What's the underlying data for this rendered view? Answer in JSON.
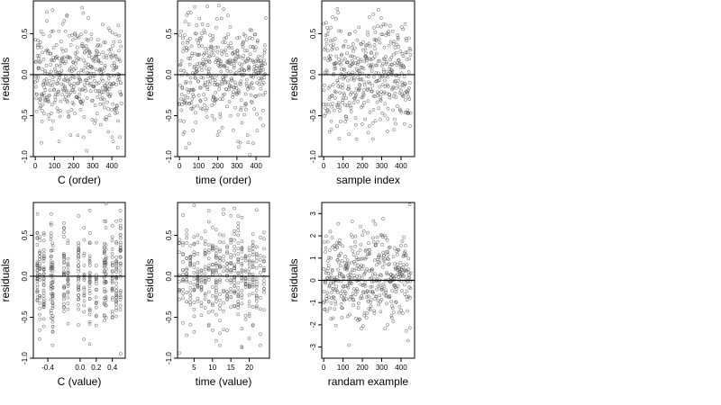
{
  "chart_data": [
    {
      "type": "scatter",
      "id": "c-order",
      "xlabel": "C (order)",
      "ylabel": "residuals",
      "xlim": [
        -10,
        470
      ],
      "ylim": [
        -1.0,
        0.9
      ],
      "xticks": [
        0,
        100,
        200,
        300,
        400
      ],
      "xtick_labels": [
        "0",
        "100",
        "200",
        "300",
        "400"
      ],
      "yticks": [
        -1.0,
        -0.5,
        0.0,
        0.5
      ],
      "ytick_labels": [
        "-1.0",
        "-0.5",
        "0.0",
        "0.5"
      ],
      "hline": 0,
      "points": [],
      "point_spec": {
        "n": 450,
        "x_range": [
          0,
          450
        ],
        "sd": 0.33,
        "seed": 11
      }
    },
    {
      "type": "scatter",
      "id": "time-order",
      "xlabel": "time (order)",
      "ylabel": "residuals",
      "xlim": [
        -10,
        470
      ],
      "ylim": [
        -1.0,
        0.9
      ],
      "xticks": [
        0,
        100,
        200,
        300,
        400
      ],
      "xtick_labels": [
        "0",
        "100",
        "200",
        "300",
        "400"
      ],
      "yticks": [
        -1.0,
        -0.5,
        0.0,
        0.5
      ],
      "ytick_labels": [
        "-1.0",
        "-0.5",
        "0.0",
        "0.5"
      ],
      "hline": 0,
      "points": [],
      "point_spec": {
        "n": 450,
        "x_range": [
          0,
          450
        ],
        "sd": 0.33,
        "seed": 23
      }
    },
    {
      "type": "scatter",
      "id": "sample-index",
      "xlabel": "sample index",
      "ylabel": "residuals",
      "xlim": [
        -10,
        470
      ],
      "ylim": [
        -1.0,
        0.9
      ],
      "xticks": [
        0,
        100,
        200,
        300,
        400
      ],
      "xtick_labels": [
        "0",
        "100",
        "200",
        "300",
        "400"
      ],
      "yticks": [
        -1.0,
        -0.5,
        0.0,
        0.5
      ],
      "ytick_labels": [
        "-1.0",
        "-0.5",
        "0.0",
        "0.5"
      ],
      "hline": 0,
      "points": [],
      "point_spec": {
        "n": 450,
        "x_range": [
          0,
          450
        ],
        "sd": 0.33,
        "seed": 37
      }
    },
    {
      "type": "scatter",
      "id": "c-value",
      "xlabel": "C (value)",
      "ylabel": "residuals",
      "xlim": [
        -0.58,
        0.56
      ],
      "ylim": [
        -1.0,
        0.9
      ],
      "xticks": [
        -0.4,
        0.0,
        0.2,
        0.4
      ],
      "xtick_labels": [
        "-0.4",
        "0.0",
        "0.2",
        "0.4"
      ],
      "yticks": [
        -1.0,
        -0.5,
        0.0,
        0.5
      ],
      "ytick_labels": [
        "-1.0",
        "-0.5",
        "0.0",
        "0.5"
      ],
      "hline": 0,
      "points": [],
      "point_spec": {
        "n": 450,
        "x_range": [
          -0.55,
          0.53
        ],
        "sd": 0.33,
        "seed": 41,
        "discrete": [
          -0.53,
          -0.5,
          -0.45,
          -0.36,
          -0.34,
          -0.2,
          -0.15,
          -0.02,
          0.05,
          0.12,
          0.2,
          0.3,
          0.32,
          0.4,
          0.45,
          0.5
        ]
      }
    },
    {
      "type": "scatter",
      "id": "time-value",
      "xlabel": "time (value)",
      "ylabel": "residuals",
      "xlim": [
        0.5,
        25.5
      ],
      "ylim": [
        -1.0,
        0.9
      ],
      "xticks": [
        5,
        10,
        15,
        20
      ],
      "xtick_labels": [
        "5",
        "10",
        "15",
        "20"
      ],
      "yticks": [
        -1.0,
        -0.5,
        0.0,
        0.5
      ],
      "ytick_labels": [
        "-1.0",
        "-0.5",
        "0.0",
        "0.5"
      ],
      "hline": 0,
      "points": [],
      "point_spec": {
        "n": 450,
        "x_range": [
          1,
          24
        ],
        "sd": 0.33,
        "seed": 53,
        "discrete": [
          1,
          2,
          3,
          4,
          5,
          6,
          7,
          8,
          9,
          10,
          11,
          12,
          13,
          14,
          15,
          16,
          17,
          18,
          19,
          20,
          21,
          22,
          23,
          24
        ]
      }
    },
    {
      "type": "scatter",
      "id": "random-example",
      "xlabel": "randam example",
      "ylabel": "residuals",
      "xlim": [
        -10,
        470
      ],
      "ylim": [
        -3.5,
        3.5
      ],
      "xticks": [
        0,
        100,
        200,
        300,
        400
      ],
      "xtick_labels": [
        "0",
        "100",
        "200",
        "300",
        "400"
      ],
      "yticks": [
        -3,
        -2,
        -1,
        0,
        1,
        2,
        3
      ],
      "ytick_labels": [
        "-3",
        "-2",
        "-1",
        "0",
        "1",
        "2",
        "3"
      ],
      "hline": 0,
      "points": [],
      "point_spec": {
        "n": 450,
        "x_range": [
          0,
          450
        ],
        "sd": 1.0,
        "seed": 67
      }
    }
  ]
}
